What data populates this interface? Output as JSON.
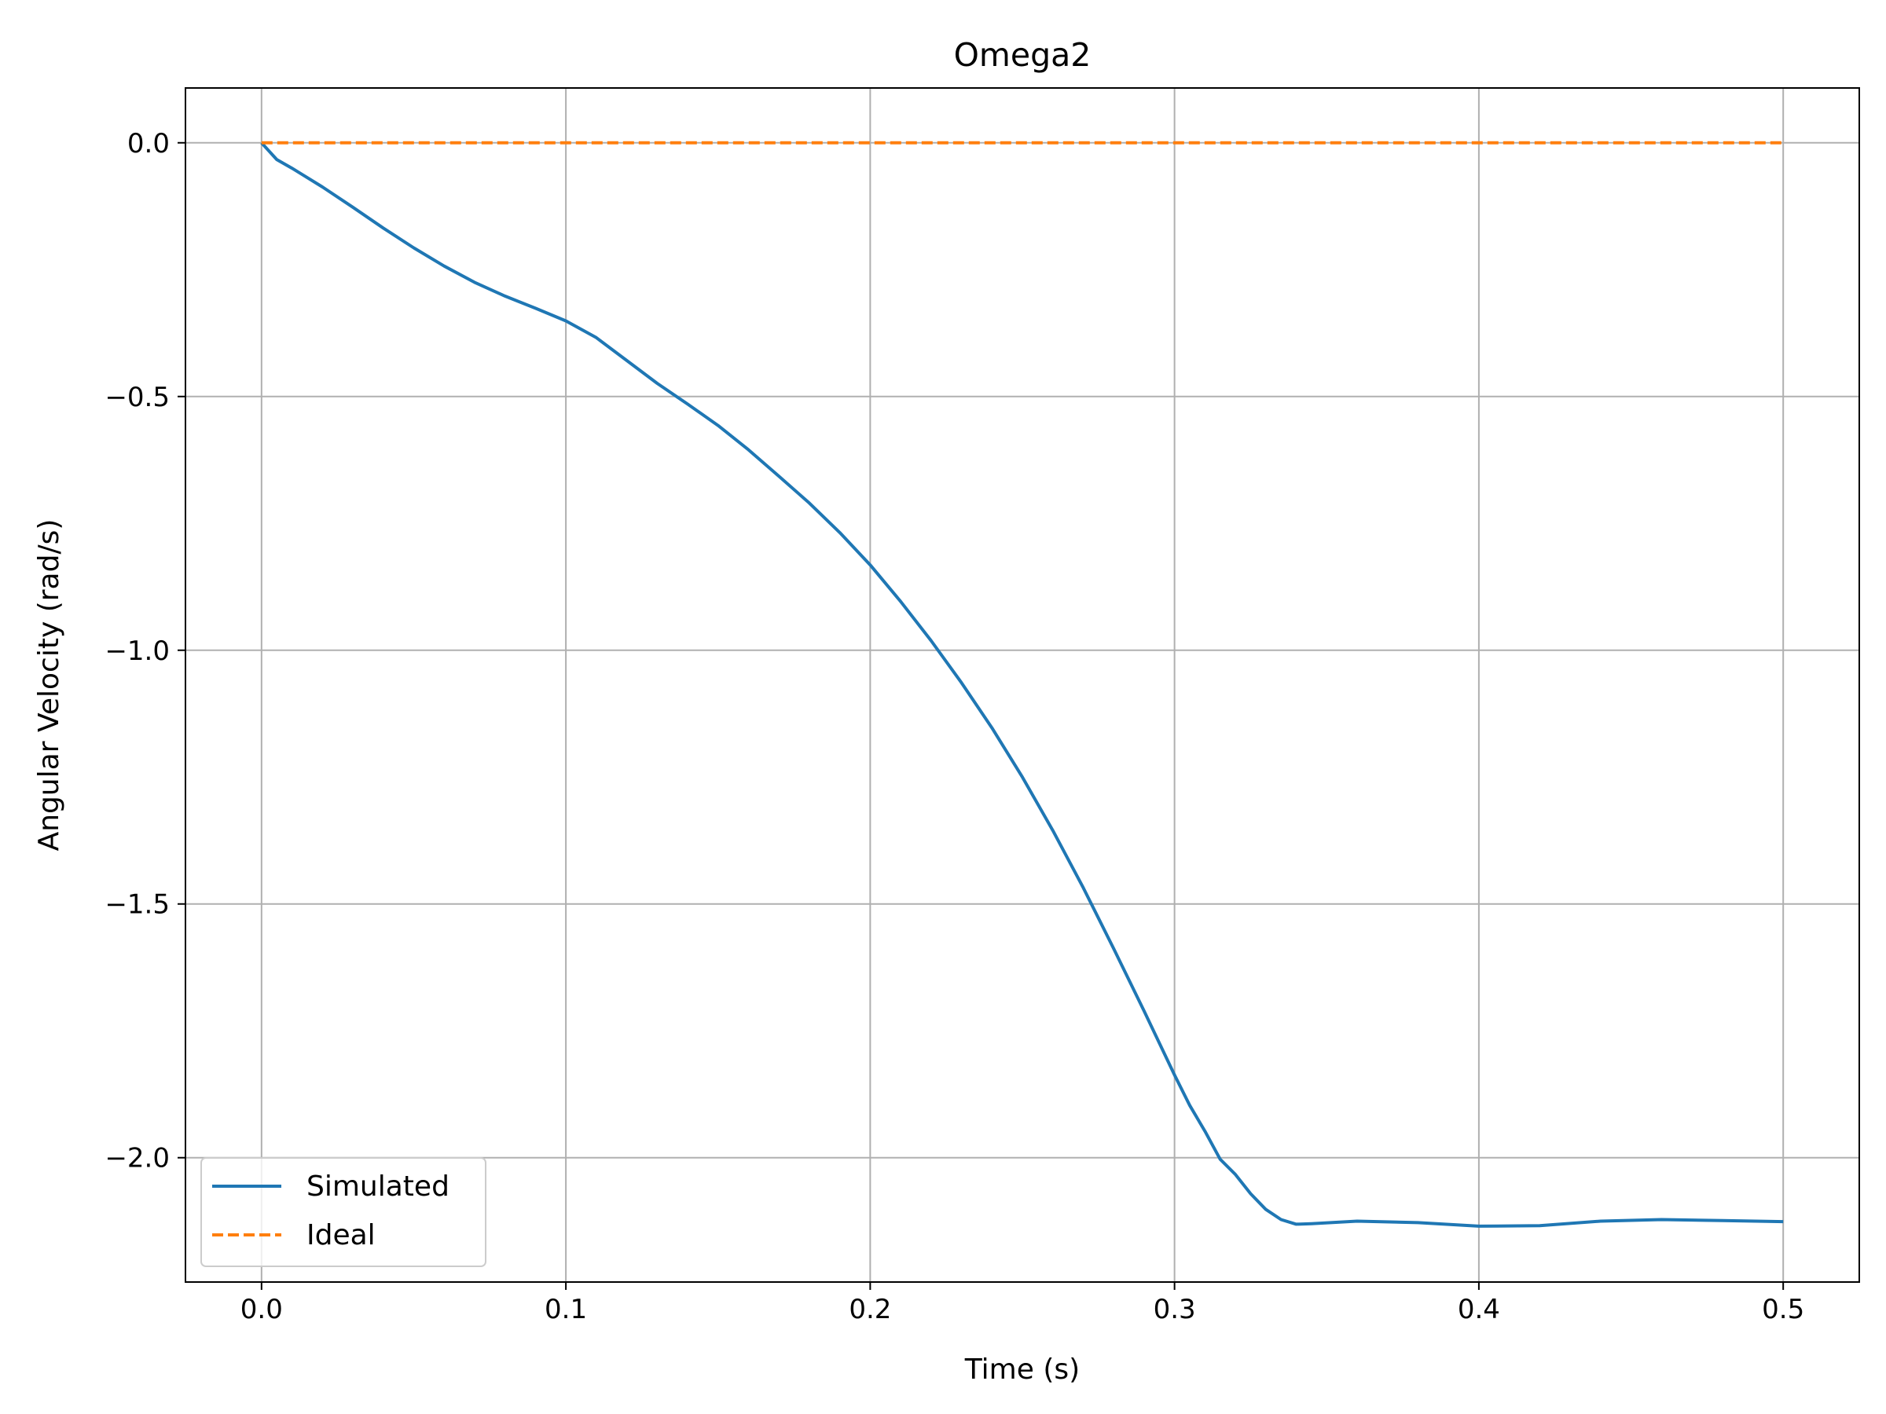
{
  "chart_data": {
    "type": "line",
    "title": "Omega2",
    "xlabel": "Time (s)",
    "ylabel": "Angular Velocity (rad/s)",
    "xlim": [
      -0.025,
      0.525
    ],
    "ylim": [
      -2.245,
      0.108
    ],
    "xticks": [
      0.0,
      0.1,
      0.2,
      0.3,
      0.4,
      0.5
    ],
    "xtick_labels": [
      "0.0",
      "0.1",
      "0.2",
      "0.3",
      "0.4",
      "0.5"
    ],
    "yticks": [
      0.0,
      -0.5,
      -1.0,
      -1.5,
      -2.0
    ],
    "ytick_labels": [
      "0.0",
      "−0.5",
      "−1.0",
      "−1.5",
      "−2.0"
    ],
    "grid": true,
    "legend_position": "lower-left",
    "series": [
      {
        "name": "Simulated",
        "color": "#1f77b4",
        "style": "solid",
        "x": [
          0.0,
          0.005,
          0.01,
          0.02,
          0.03,
          0.04,
          0.05,
          0.06,
          0.07,
          0.08,
          0.09,
          0.1,
          0.11,
          0.12,
          0.13,
          0.14,
          0.15,
          0.16,
          0.17,
          0.18,
          0.19,
          0.2,
          0.21,
          0.22,
          0.23,
          0.24,
          0.25,
          0.26,
          0.27,
          0.28,
          0.29,
          0.3,
          0.305,
          0.31,
          0.315,
          0.32,
          0.325,
          0.33,
          0.335,
          0.34,
          0.345,
          0.36,
          0.38,
          0.4,
          0.42,
          0.44,
          0.46,
          0.48,
          0.5
        ],
        "y": [
          0.0,
          -0.033,
          -0.05,
          -0.087,
          -0.127,
          -0.168,
          -0.207,
          -0.243,
          -0.275,
          -0.302,
          -0.326,
          -0.351,
          -0.384,
          -0.429,
          -0.474,
          -0.515,
          -0.557,
          -0.605,
          -0.657,
          -0.71,
          -0.768,
          -0.832,
          -0.904,
          -0.981,
          -1.064,
          -1.153,
          -1.25,
          -1.355,
          -1.468,
          -1.588,
          -1.711,
          -1.837,
          -1.897,
          -1.948,
          -2.003,
          -2.033,
          -2.071,
          -2.102,
          -2.122,
          -2.131,
          -2.13,
          -2.125,
          -2.128,
          -2.135,
          -2.134,
          -2.125,
          -2.122,
          -2.124,
          -2.126
        ]
      },
      {
        "name": "Ideal",
        "color": "#ff7f0e",
        "style": "dashed",
        "x": [
          0.0,
          0.5
        ],
        "y": [
          0.0,
          0.0
        ]
      }
    ]
  }
}
